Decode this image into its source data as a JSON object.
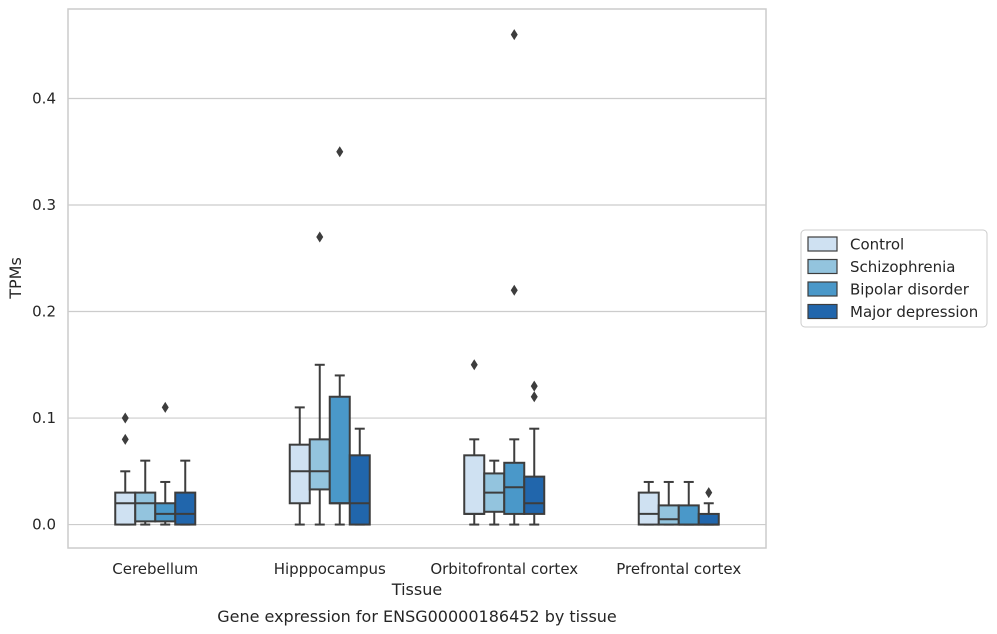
{
  "chart_data": {
    "type": "box",
    "xlabel": "Tissue",
    "ylabel": "TPMs",
    "caption": "Gene expression for ENSG00000186452 by tissue",
    "ylim": [
      -0.022,
      0.484
    ],
    "yticks": [
      "0.0",
      "0.1",
      "0.2",
      "0.3",
      "0.4"
    ],
    "ytick_values": [
      0.0,
      0.1,
      0.2,
      0.3,
      0.4
    ],
    "grid": "horizontal",
    "legend_position": "right, outside plot",
    "categories": [
      "Cerebellum",
      "Hipppocampus",
      "Orbitofrontal cortex",
      "Prefrontal cortex"
    ],
    "series": [
      {
        "name": "Control",
        "color": "#cfe1f2",
        "boxes": [
          {
            "whisker_low": 0.0,
            "q1": 0.0,
            "median": 0.02,
            "q3": 0.03,
            "whisker_high": 0.05,
            "outliers": [
              0.08,
              0.1
            ]
          },
          {
            "whisker_low": 0.0,
            "q1": 0.02,
            "median": 0.05,
            "q3": 0.075,
            "whisker_high": 0.11,
            "outliers": []
          },
          {
            "whisker_low": 0.0,
            "q1": 0.01,
            "median": 0.01,
            "q3": 0.065,
            "whisker_high": 0.08,
            "outliers": [
              0.15
            ]
          },
          {
            "whisker_low": 0.0,
            "q1": 0.0,
            "median": 0.01,
            "q3": 0.03,
            "whisker_high": 0.04,
            "outliers": []
          }
        ]
      },
      {
        "name": "Schizophrenia",
        "color": "#93c4de",
        "boxes": [
          {
            "whisker_low": 0.0,
            "q1": 0.003,
            "median": 0.02,
            "q3": 0.03,
            "whisker_high": 0.06,
            "outliers": []
          },
          {
            "whisker_low": 0.0,
            "q1": 0.033,
            "median": 0.05,
            "q3": 0.08,
            "whisker_high": 0.15,
            "outliers": [
              0.27
            ]
          },
          {
            "whisker_low": 0.0,
            "q1": 0.012,
            "median": 0.03,
            "q3": 0.048,
            "whisker_high": 0.06,
            "outliers": []
          },
          {
            "whisker_low": 0.0,
            "q1": 0.0,
            "median": 0.005,
            "q3": 0.018,
            "whisker_high": 0.04,
            "outliers": []
          }
        ]
      },
      {
        "name": "Bipolar disorder",
        "color": "#4a98c9",
        "boxes": [
          {
            "whisker_low": 0.0,
            "q1": 0.003,
            "median": 0.01,
            "q3": 0.02,
            "whisker_high": 0.04,
            "outliers": [
              0.11
            ]
          },
          {
            "whisker_low": 0.0,
            "q1": 0.02,
            "median": 0.02,
            "q3": 0.12,
            "whisker_high": 0.14,
            "outliers": [
              0.35
            ]
          },
          {
            "whisker_low": 0.0,
            "q1": 0.01,
            "median": 0.035,
            "q3": 0.058,
            "whisker_high": 0.08,
            "outliers": [
              0.22,
              0.46
            ]
          },
          {
            "whisker_low": 0.0,
            "q1": 0.0,
            "median": 0.0,
            "q3": 0.018,
            "whisker_high": 0.04,
            "outliers": []
          }
        ]
      },
      {
        "name": "Major depression",
        "color": "#2166ac",
        "boxes": [
          {
            "whisker_low": 0.0,
            "q1": 0.0,
            "median": 0.01,
            "q3": 0.03,
            "whisker_high": 0.06,
            "outliers": []
          },
          {
            "whisker_low": 0.0,
            "q1": 0.0,
            "median": 0.02,
            "q3": 0.065,
            "whisker_high": 0.09,
            "outliers": []
          },
          {
            "whisker_low": 0.0,
            "q1": 0.01,
            "median": 0.02,
            "q3": 0.045,
            "whisker_high": 0.09,
            "outliers": [
              0.12,
              0.13
            ]
          },
          {
            "whisker_low": 0.0,
            "q1": 0.0,
            "median": 0.0,
            "q3": 0.01,
            "whisker_high": 0.02,
            "outliers": [
              0.03
            ]
          }
        ]
      }
    ]
  }
}
